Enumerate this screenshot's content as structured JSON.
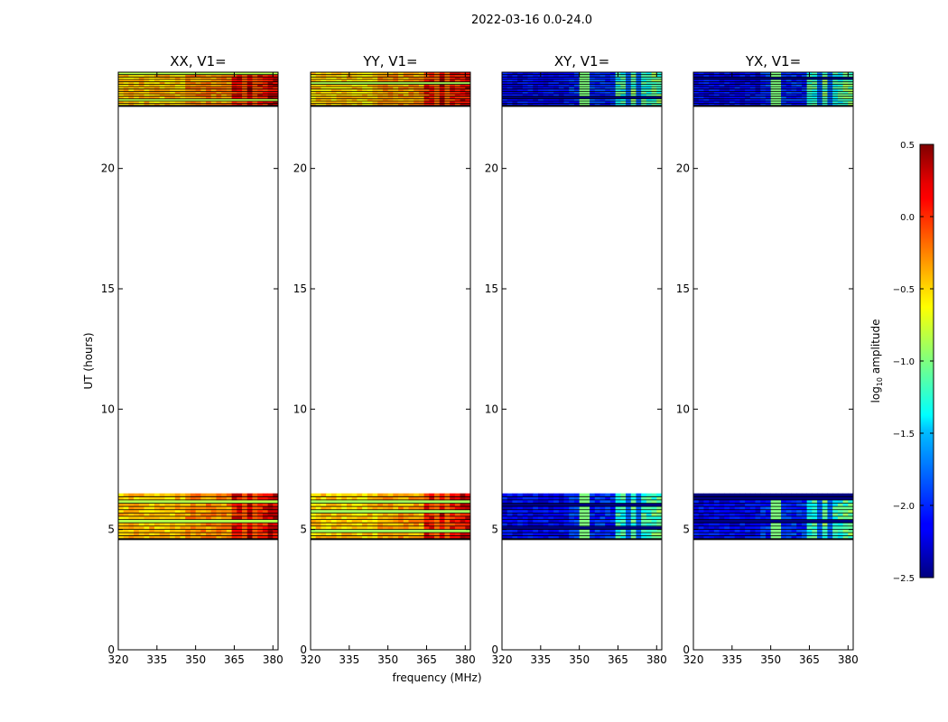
{
  "figure": {
    "suptitle": "2022-03-16 0.0-24.0"
  },
  "chart_data": {
    "type": "heatmap",
    "xlabel": "frequency (MHz)",
    "ylabel": "UT (hours)",
    "xlim": [
      320,
      382
    ],
    "ylim": [
      0,
      24
    ],
    "xticks": [
      320,
      335,
      350,
      365,
      380
    ],
    "yticks": [
      0,
      5,
      10,
      15,
      20
    ],
    "colorbar": {
      "label": "log10 amplitude",
      "label_main": "log",
      "label_sub": "10",
      "label_rest": " amplitude",
      "colormap": "jet",
      "range": [
        -2.5,
        0.5
      ],
      "ticks": [
        0.5,
        0.0,
        -0.5,
        -1.0,
        -1.5,
        -2.0,
        -2.5
      ],
      "tick_labels": [
        "0.5",
        "0.0",
        "−0.5",
        "−1.0",
        "−1.5",
        "−2.0",
        "−2.5"
      ]
    },
    "data_blocks_hours": [
      [
        4.6,
        6.5
      ],
      [
        22.6,
        24.0
      ]
    ],
    "panels": [
      {
        "title": "XX, V1=",
        "pol": "XX",
        "base_level": -0.45,
        "band_level": 0.15,
        "band_mhz": [
          363,
          381
        ]
      },
      {
        "title": "YY, V1=",
        "pol": "YY",
        "base_level": -0.5,
        "band_level": 0.1,
        "band_mhz": [
          363,
          381
        ]
      },
      {
        "title": "XY, V1=",
        "pol": "XY",
        "base_level": -2.15,
        "band_level": -1.2,
        "band_mhz": [
          363,
          381
        ]
      },
      {
        "title": "YX, V1=",
        "pol": "YX",
        "base_level": -2.15,
        "band_level": -1.2,
        "band_mhz": [
          363,
          381
        ]
      }
    ]
  }
}
